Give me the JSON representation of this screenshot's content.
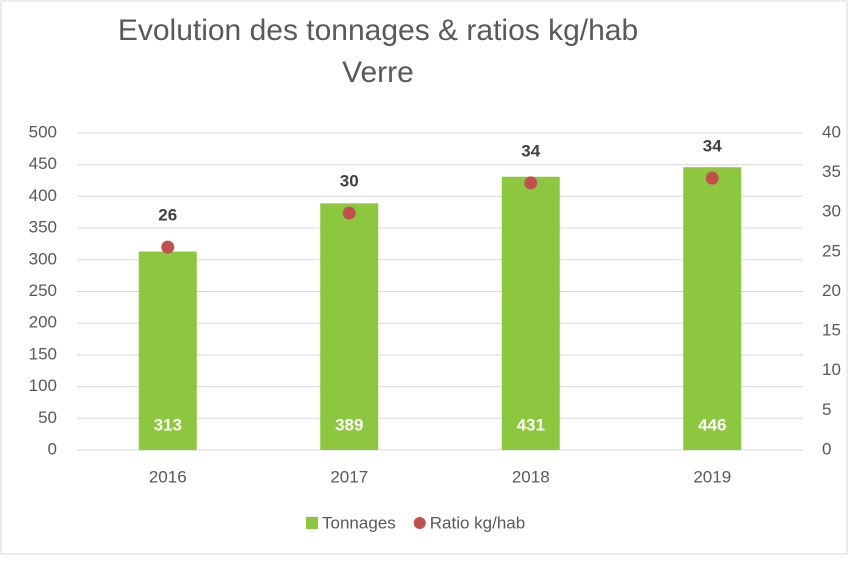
{
  "chart_data": {
    "type": "bar_dot",
    "title": "Evolution des tonnages & ratios kg/hab",
    "subtitle": "Verre",
    "categories": [
      "2016",
      "2017",
      "2018",
      "2019"
    ],
    "series": [
      {
        "name": "Tonnages",
        "color": "#8dc63f",
        "values": [
          313,
          389,
          431,
          446
        ]
      },
      {
        "name": "Ratio kg/hab",
        "color": "#c0504d",
        "axis": "y2",
        "values": [
          25.6,
          29.9,
          33.7,
          34.3
        ],
        "value_labels": [
          "26",
          "30",
          "34",
          "34"
        ]
      }
    ],
    "ylim": [
      0,
      500
    ],
    "yticks": [
      0,
      50,
      100,
      150,
      200,
      250,
      300,
      350,
      400,
      450,
      500
    ],
    "y2lim": [
      0,
      40
    ],
    "y2ticks": [
      0,
      5,
      10,
      15,
      20,
      25,
      30,
      35,
      40
    ],
    "grid": true,
    "legend": "bottom"
  }
}
